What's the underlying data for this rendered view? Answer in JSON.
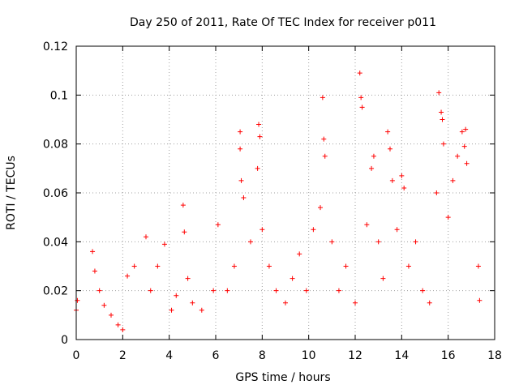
{
  "chart_data": {
    "type": "scatter",
    "title": "Day 250 of 2011, Rate Of TEC Index for receiver p011",
    "xlabel": "GPS time / hours",
    "ylabel": "ROTI / TECUs",
    "xlim": [
      0,
      18
    ],
    "ylim": [
      0,
      0.12
    ],
    "x_ticks": [
      0,
      2,
      4,
      6,
      8,
      10,
      12,
      14,
      16,
      18
    ],
    "y_ticks": [
      0,
      0.02,
      0.04,
      0.06,
      0.08,
      0.1,
      0.12
    ],
    "x_tick_labels": [
      "0",
      "2",
      "4",
      "6",
      "8",
      "10",
      "12",
      "14",
      "16",
      "18"
    ],
    "y_tick_labels": [
      "0",
      "0.02",
      "0.04",
      "0.06",
      "0.08",
      "0.1",
      "0.12"
    ],
    "grid": true,
    "marker": "+",
    "marker_color": "#ff0000",
    "series": [
      {
        "name": "ROTI",
        "x": [
          0.0,
          0.05,
          0.7,
          0.8,
          1.0,
          1.2,
          1.5,
          1.8,
          2.0,
          2.2,
          2.5,
          3.0,
          3.2,
          3.5,
          3.8,
          4.1,
          4.3,
          4.6,
          4.65,
          4.8,
          5.0,
          5.4,
          5.9,
          6.1,
          6.5,
          6.8,
          7.05,
          7.05,
          7.1,
          7.2,
          7.5,
          7.8,
          7.85,
          7.9,
          8.0,
          8.3,
          8.6,
          9.0,
          9.3,
          9.6,
          9.9,
          10.2,
          10.5,
          10.6,
          10.65,
          10.7,
          11.0,
          11.3,
          11.6,
          12.0,
          12.2,
          12.25,
          12.3,
          12.5,
          12.7,
          12.8,
          13.0,
          13.2,
          13.4,
          13.5,
          13.6,
          13.8,
          14.0,
          14.1,
          14.3,
          14.6,
          14.9,
          15.2,
          15.5,
          15.6,
          15.7,
          15.75,
          15.8,
          16.0,
          16.2,
          16.4,
          16.6,
          16.7,
          16.75,
          16.8,
          17.3,
          17.35
        ],
        "y": [
          0.012,
          0.016,
          0.036,
          0.028,
          0.02,
          0.014,
          0.01,
          0.006,
          0.004,
          0.026,
          0.03,
          0.042,
          0.02,
          0.03,
          0.039,
          0.012,
          0.018,
          0.055,
          0.044,
          0.025,
          0.015,
          0.012,
          0.02,
          0.047,
          0.02,
          0.03,
          0.085,
          0.078,
          0.065,
          0.058,
          0.04,
          0.07,
          0.088,
          0.083,
          0.045,
          0.03,
          0.02,
          0.015,
          0.025,
          0.035,
          0.02,
          0.045,
          0.054,
          0.099,
          0.082,
          0.075,
          0.04,
          0.02,
          0.03,
          0.015,
          0.109,
          0.099,
          0.095,
          0.047,
          0.07,
          0.075,
          0.04,
          0.025,
          0.085,
          0.078,
          0.065,
          0.045,
          0.067,
          0.062,
          0.03,
          0.04,
          0.02,
          0.015,
          0.06,
          0.101,
          0.093,
          0.09,
          0.08,
          0.05,
          0.065,
          0.075,
          0.085,
          0.079,
          0.086,
          0.072,
          0.03,
          0.016
        ]
      }
    ]
  }
}
